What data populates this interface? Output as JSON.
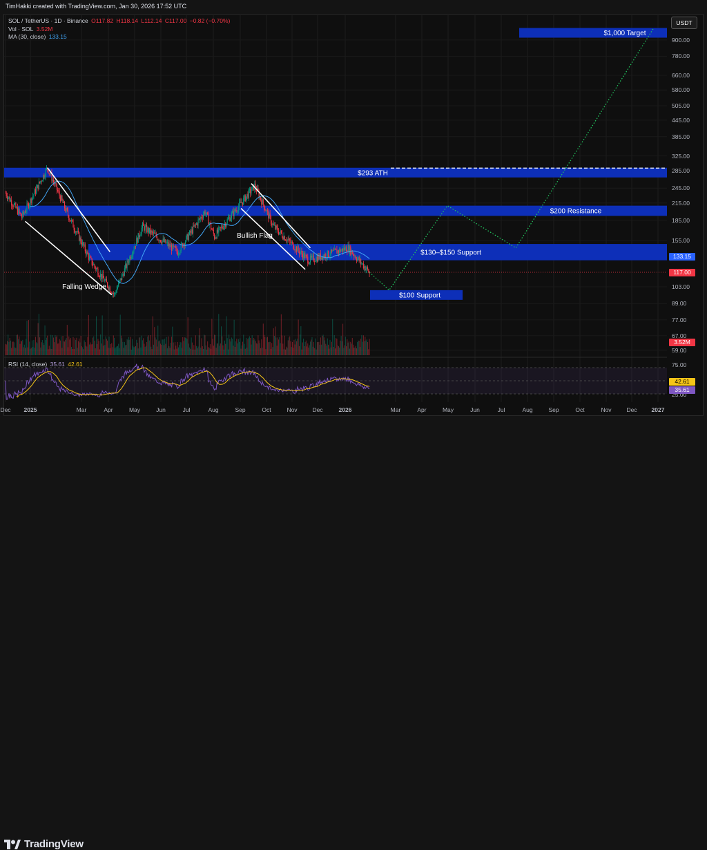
{
  "credit": "TimHakki created with TradingView.com, Jan 30, 2026 17:52 UTC",
  "legend": {
    "symbol": "SOL / TetherUS · 1D · Binance",
    "ohlc": {
      "o": "O117.82",
      "h": "H118.14",
      "l": "L112.14",
      "c": "C117.00",
      "chg": "−0.82 (−0.70%)"
    },
    "vol_label": "Vol · SOL",
    "vol_value": "3.52M",
    "ma_label": "MA (30, close)",
    "ma_value": "133.15",
    "rsi_label": "RSI (14, close)",
    "rsi_value": "35.61",
    "rsi_ma_value": "42.61"
  },
  "axis": {
    "currency": "USDT",
    "price_ticks": [
      "900.00",
      "780.00",
      "660.00",
      "580.00",
      "505.00",
      "445.00",
      "385.00",
      "325.00",
      "285.00",
      "245.00",
      "215.00",
      "185.00",
      "155.00",
      "133.15",
      "117.00",
      "103.00",
      "89.00",
      "77.00",
      "67.00",
      "59.00"
    ],
    "rsi_ticks": [
      "75.00",
      "25.00"
    ],
    "x_ticks": [
      "Dec",
      "2025",
      "Mar",
      "Apr",
      "May",
      "Jun",
      "Jul",
      "Aug",
      "Sep",
      "Oct",
      "Nov",
      "Dec",
      "2026",
      "Mar",
      "Apr",
      "May",
      "Jun",
      "Jul",
      "Aug",
      "Sep",
      "Oct",
      "Nov",
      "Dec",
      "2027"
    ]
  },
  "badges": {
    "ma": "133.15",
    "price": "117.00",
    "volume": "3.52M",
    "rsi_ma": "42.61",
    "rsi": "35.61"
  },
  "annotations": {
    "target": "$1,000 Target",
    "ath": "$293 ATH",
    "resistance": "$200 Resistance",
    "support_zone": "$130–$150 Support",
    "support_100": "$100 Support",
    "falling_wedge": "Falling Wedge",
    "bullish_flag": "Bullish Flag"
  },
  "chart_data": {
    "type": "candlestick",
    "symbol": "SOL / TetherUS",
    "timeframe": "1D",
    "exchange": "Binance",
    "scale": "log",
    "last": {
      "open": 117.82,
      "high": 118.14,
      "low": 112.14,
      "close": 117.0,
      "change": -0.82,
      "change_pct": -0.7
    },
    "ma30": 133.15,
    "volume": "3.52M",
    "rsi14": 35.61,
    "rsi_ma": 42.61,
    "zones": [
      {
        "label": "$1,000 Target",
        "price_low": 930,
        "price_high": 1000
      },
      {
        "label": "$293 ATH",
        "price_low": 278,
        "price_high": 293
      },
      {
        "label": "$200 Resistance",
        "price_low": 192,
        "price_high": 210
      },
      {
        "label": "$130–$150 Support",
        "price_low": 130,
        "price_high": 150
      },
      {
        "label": "$100 Support",
        "price_low": 93,
        "price_high": 100
      }
    ],
    "price_path": [
      {
        "t": "2024-12-01",
        "p": 235
      },
      {
        "t": "2024-12-20",
        "p": 190
      },
      {
        "t": "2025-01-19",
        "p": 293
      },
      {
        "t": "2025-02-10",
        "p": 200
      },
      {
        "t": "2025-03-10",
        "p": 130
      },
      {
        "t": "2025-04-07",
        "p": 96
      },
      {
        "t": "2025-05-10",
        "p": 175
      },
      {
        "t": "2025-06-20",
        "p": 140
      },
      {
        "t": "2025-07-22",
        "p": 200
      },
      {
        "t": "2025-08-02",
        "p": 160
      },
      {
        "t": "2025-09-18",
        "p": 250
      },
      {
        "t": "2025-10-10",
        "p": 175
      },
      {
        "t": "2025-11-20",
        "p": 130
      },
      {
        "t": "2026-01-05",
        "p": 145
      },
      {
        "t": "2026-01-30",
        "p": 117
      }
    ],
    "projection": [
      {
        "t": "2026-01-30",
        "p": 117
      },
      {
        "t": "2026-02-22",
        "p": 100
      },
      {
        "t": "2026-05-01",
        "p": 210
      },
      {
        "t": "2026-07-20",
        "p": 145
      },
      {
        "t": "2026-12-28",
        "p": 1000
      }
    ]
  }
}
